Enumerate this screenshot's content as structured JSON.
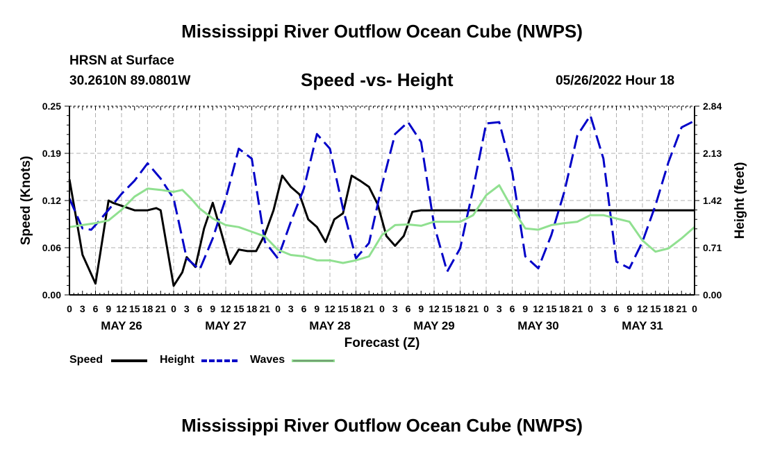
{
  "header": {
    "title": "Mississippi River Outflow Ocean Cube (NWPS)",
    "station": "HRSN at Surface",
    "latlon": "30.2610N  89.0801W",
    "subtitle": "Speed -vs- Height",
    "datetime": "05/26/2022 Hour 18"
  },
  "footer": {
    "title": "Mississippi River Outflow Ocean Cube (NWPS)"
  },
  "colors": {
    "speed": "#000000",
    "height": "#0000c8",
    "waves": "#90e090",
    "grid": "#b0b0b0"
  },
  "chart_data": {
    "type": "line",
    "title": "Speed -vs- Height",
    "xlabel": "Forecast (Z)",
    "ylabel": "Speed (Knots)",
    "y2label": "Height (feet)",
    "x_range": [
      0,
      144
    ],
    "ylim": [
      0,
      0.25
    ],
    "y2lim": [
      0,
      2.84
    ],
    "yticks": [
      "0.00",
      "0.06",
      "0.12",
      "0.19",
      "0.25"
    ],
    "y2ticks": [
      "0.00",
      "0.71",
      "1.42",
      "2.13",
      "2.84"
    ],
    "xtick_labels": [
      "0",
      "3",
      "6",
      "9",
      "12",
      "15",
      "18",
      "21",
      "0",
      "3",
      "6",
      "9",
      "12",
      "15",
      "18",
      "21",
      "0",
      "3",
      "6",
      "9",
      "12",
      "15",
      "18",
      "21",
      "0",
      "3",
      "6",
      "9",
      "12",
      "15",
      "18",
      "21",
      "0",
      "3",
      "6",
      "9",
      "12",
      "15",
      "18",
      "21",
      "0",
      "3",
      "6",
      "9",
      "12",
      "15",
      "18",
      "21",
      "0"
    ],
    "day_labels": [
      "MAY 26",
      "MAY 27",
      "MAY 28",
      "MAY 29",
      "MAY 30",
      "MAY 31"
    ],
    "grid": true,
    "legend": [
      "Speed",
      "Height",
      "Waves"
    ],
    "series": [
      {
        "name": "Speed",
        "axis": "left",
        "style": "solid",
        "x": [
          0,
          3,
          6,
          9,
          10,
          12,
          15,
          18,
          20,
          21,
          23,
          24,
          26,
          27,
          29,
          31,
          33,
          35,
          37,
          39,
          41,
          43,
          45,
          47,
          49,
          51,
          53,
          55,
          57,
          59,
          61,
          63,
          65,
          67,
          69,
          71,
          73,
          75,
          77,
          79,
          81,
          83,
          85,
          87,
          89,
          91,
          93,
          95,
          97,
          99,
          100,
          102,
          104,
          106,
          144
        ],
        "y": [
          0.153,
          0.053,
          0.015,
          0.125,
          0.122,
          0.118,
          0.112,
          0.112,
          0.115,
          0.112,
          0.045,
          0.012,
          0.03,
          0.05,
          0.037,
          0.088,
          0.122,
          0.082,
          0.041,
          0.06,
          0.058,
          0.058,
          0.08,
          0.112,
          0.158,
          0.143,
          0.133,
          0.1,
          0.09,
          0.07,
          0.1,
          0.108,
          0.158,
          0.151,
          0.143,
          0.12,
          0.078,
          0.065,
          0.078,
          0.11,
          0.112,
          0.112,
          0.112,
          0.112,
          0.112,
          0.112,
          0.112,
          0.112,
          0.112,
          0.112,
          0.112,
          0.112,
          0.112,
          0.112,
          0.112
        ]
      },
      {
        "name": "Height",
        "axis": "right",
        "style": "dashed",
        "x": [
          0,
          3,
          5,
          6,
          9,
          12,
          15,
          18,
          21,
          24,
          27,
          30,
          33,
          36,
          39,
          42,
          45,
          48,
          51,
          54,
          57,
          60,
          63,
          66,
          69,
          72,
          75,
          78,
          81,
          84,
          87,
          90,
          93,
          96,
          99,
          102,
          105,
          108,
          111,
          114,
          117,
          120,
          123,
          126,
          129,
          132,
          135,
          138,
          141,
          144
        ],
        "y": [
          1.45,
          1.0,
          0.98,
          1.05,
          1.28,
          1.52,
          1.72,
          1.98,
          1.75,
          1.45,
          0.55,
          0.38,
          0.85,
          1.45,
          2.2,
          2.05,
          0.8,
          0.55,
          1.1,
          1.6,
          2.42,
          2.2,
          1.3,
          0.55,
          0.78,
          1.65,
          2.42,
          2.6,
          2.3,
          1.05,
          0.35,
          0.7,
          1.6,
          2.58,
          2.6,
          1.85,
          0.58,
          0.4,
          0.9,
          1.55,
          2.4,
          2.7,
          2.05,
          0.5,
          0.4,
          0.8,
          1.35,
          2.0,
          2.52,
          2.62
        ]
      },
      {
        "name": "Waves",
        "axis": "right",
        "style": "solid",
        "x": [
          0,
          3,
          6,
          9,
          12,
          15,
          18,
          21,
          24,
          26,
          28,
          30,
          33,
          36,
          39,
          42,
          45,
          48,
          51,
          54,
          57,
          60,
          63,
          66,
          69,
          72,
          75,
          78,
          81,
          84,
          87,
          90,
          93,
          96,
          99,
          102,
          105,
          108,
          111,
          114,
          117,
          120,
          123,
          126,
          129,
          132,
          135,
          138,
          141,
          144
        ],
        "y": [
          1.02,
          1.05,
          1.08,
          1.12,
          1.28,
          1.48,
          1.6,
          1.58,
          1.55,
          1.58,
          1.45,
          1.3,
          1.15,
          1.05,
          1.02,
          0.95,
          0.88,
          0.68,
          0.6,
          0.58,
          0.52,
          0.52,
          0.48,
          0.52,
          0.58,
          0.9,
          1.05,
          1.06,
          1.04,
          1.1,
          1.1,
          1.1,
          1.2,
          1.5,
          1.65,
          1.3,
          1.0,
          0.98,
          1.05,
          1.08,
          1.1,
          1.2,
          1.2,
          1.15,
          1.1,
          0.82,
          0.65,
          0.7,
          0.85,
          1.02
        ]
      }
    ]
  }
}
